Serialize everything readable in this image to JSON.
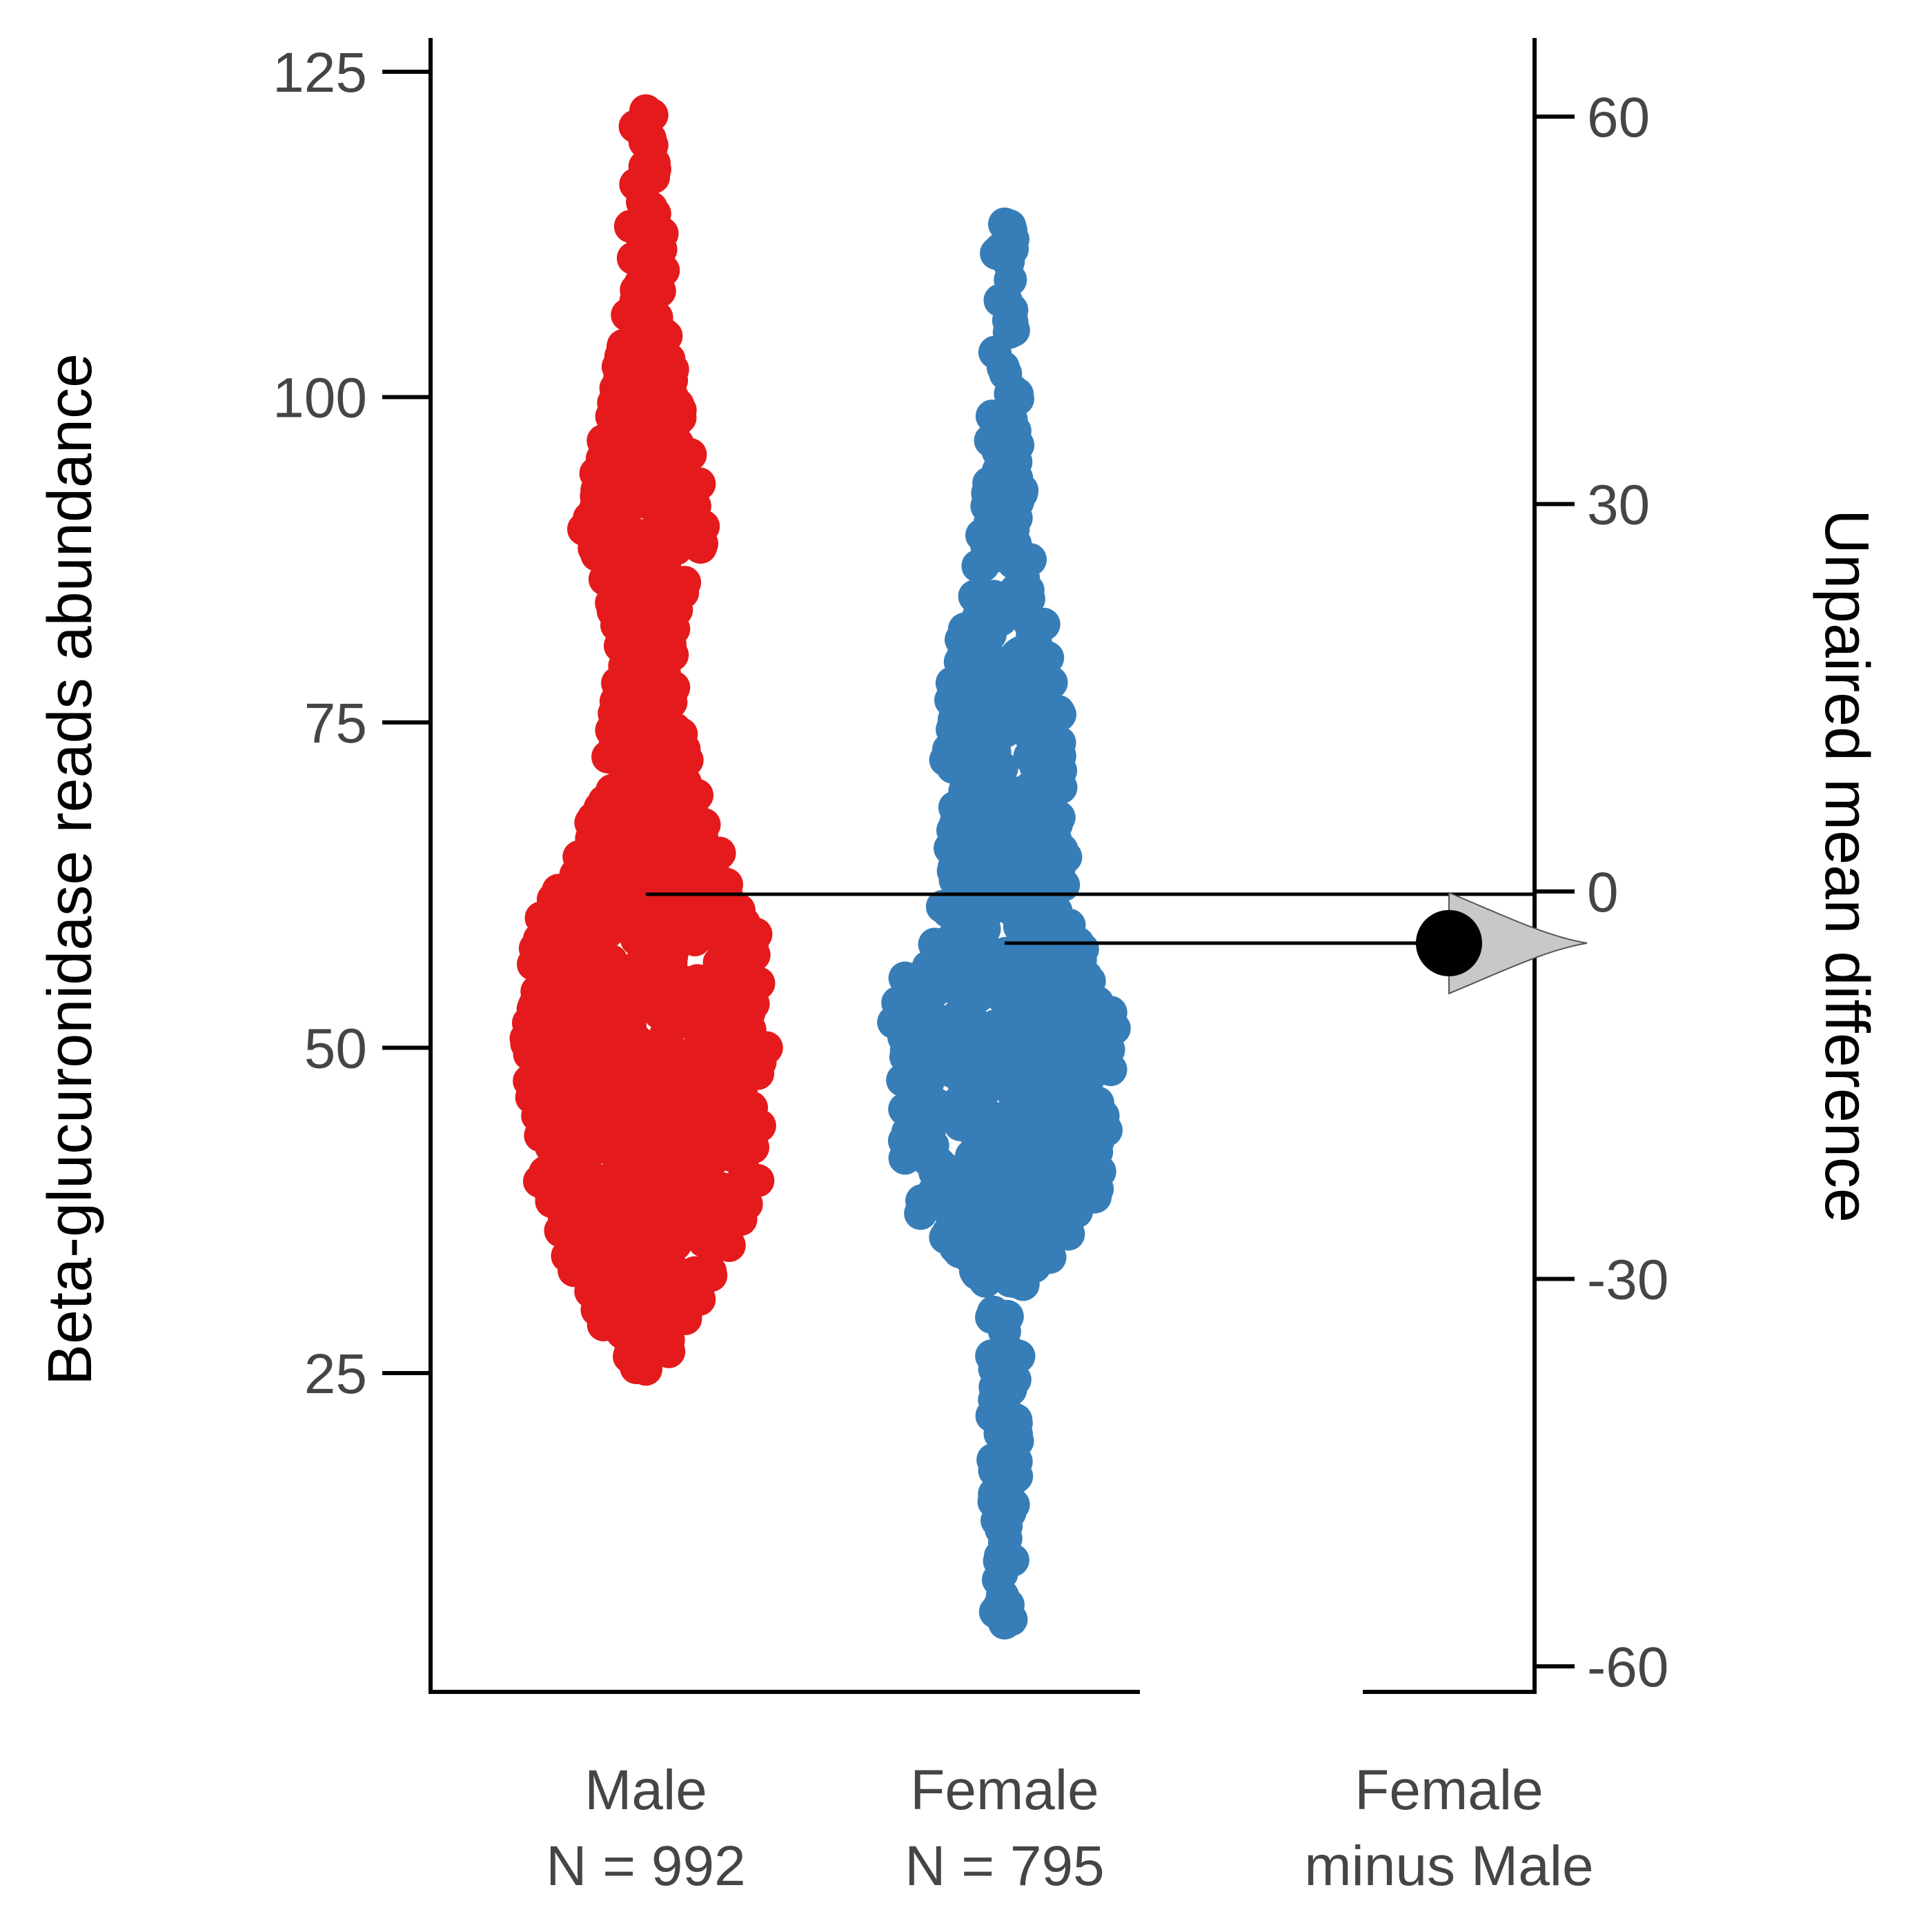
{
  "chart_data": {
    "type": "scatter",
    "subtype": "estimation-plot-swarm",
    "title": "",
    "left_axis": {
      "label": "Beta-glucuronidase reads abundance",
      "ylim": [
        0,
        127.5
      ],
      "ticks": [
        25,
        50,
        75,
        100,
        125
      ]
    },
    "right_axis": {
      "label": "Unpaired mean difference",
      "ylim": [
        -60.7,
        65.5
      ],
      "ticks": [
        60,
        30,
        0,
        -30,
        -60
      ]
    },
    "groups": [
      {
        "name": "Male",
        "label_line1": "Male",
        "label_line2": "N = 992",
        "n": 992,
        "color": "#e41a1c",
        "mean": 61.8,
        "min": 25.3,
        "max": 122.0
      },
      {
        "name": "Female",
        "label_line1": "Female",
        "label_line2": "N = 795",
        "n": 795,
        "color": "#377eb8",
        "mean": 57.8,
        "min": 5.8,
        "max": 113.3
      }
    ],
    "effect": {
      "label_line1": "Female",
      "label_line2": "minus Male",
      "mean_difference": -4.0,
      "ci": [
        -6.5,
        -1.5
      ],
      "color": "#000000",
      "distribution_color": "#c8c8c8"
    },
    "grid": false,
    "legend": "none"
  }
}
